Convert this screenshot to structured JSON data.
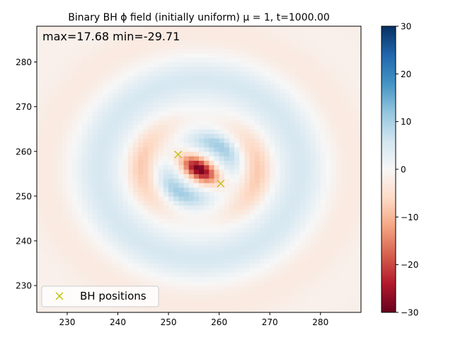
{
  "chart_data": {
    "type": "heatmap",
    "title": "Binary BH ϕ field (initially uniform) μ = 1, t=1000.00",
    "annotation": "max=17.68 min=-29.71",
    "field_max": 17.68,
    "field_min": -29.71,
    "xlabel": "",
    "ylabel": "",
    "xlim": [
      224,
      288
    ],
    "ylim": [
      224,
      288
    ],
    "xticks": [
      230,
      240,
      250,
      260,
      270,
      280
    ],
    "yticks": [
      230,
      240,
      250,
      260,
      270,
      280
    ],
    "colormap": "RdBu",
    "colormap_stops": [
      "#67001f",
      "#b2182b",
      "#d6604d",
      "#f4a582",
      "#fddbc7",
      "#f7f7f7",
      "#d1e5f0",
      "#92c5de",
      "#4393c3",
      "#2166ac",
      "#053061"
    ],
    "colorbar": {
      "min": -30,
      "max": 30,
      "ticks": [
        -30,
        -20,
        -10,
        0,
        10,
        20,
        30
      ]
    },
    "grid": false,
    "legend": {
      "position": "lower-left",
      "entries": [
        {
          "label": "BH positions",
          "marker": "x",
          "color": "#bfbf00"
        }
      ]
    },
    "series": [
      {
        "type": "scatter",
        "marker": "x",
        "color": "#bfbf00",
        "points": [
          {
            "x": 251.9,
            "y": 259.3
          },
          {
            "x": 260.3,
            "y": 252.8
          }
        ]
      }
    ]
  }
}
